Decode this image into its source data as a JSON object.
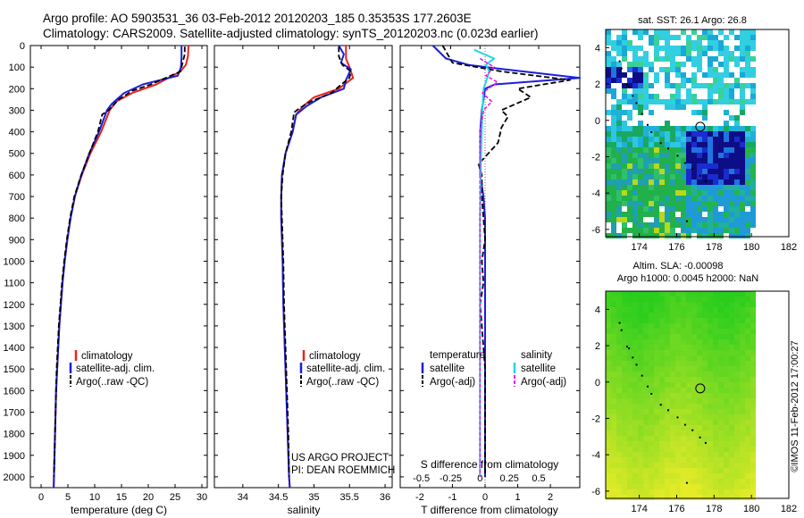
{
  "title": {
    "line1": "Argo profile: AO 5903531_36 03-Feb-2012 20120203_185 0.35353S 177.2603E",
    "line2": "Climatology: CARS2009. Satellite-adjusted climatology: synTS_20120203.nc (0.023d earlier)"
  },
  "depth_ticks": [
    "0",
    "100",
    "200",
    "300",
    "400",
    "500",
    "600",
    "700",
    "800",
    "900",
    "1000",
    "1100",
    "1200",
    "1300",
    "1400",
    "1500",
    "1600",
    "1700",
    "1800",
    "1900",
    "2000"
  ],
  "legend_profile": {
    "climatology": "climatology",
    "satellite": "satellite-adj. clim.",
    "argo": "Argo(..raw -QC)"
  },
  "legend_diff": {
    "temperature_header": "temperature",
    "salinity_header": "salinity",
    "t_satellite": "satellite",
    "t_argo": "Argo(-adj)",
    "s_satellite": "satellite",
    "s_argo": "Argo(-adj)"
  },
  "project": {
    "line1": "US ARGO PROJECT",
    "line2": "PI: DEAN ROEMMICH"
  },
  "sst_title": "sat. SST: 26.1  Argo: 26.8",
  "sla_title": {
    "line1": "Altim. SLA: -0.00098",
    "line2": "Argo h1000: 0.0045 h2000: NaN"
  },
  "timestamp": "©IMOS 11-Feb-2012 17:00:27",
  "colors": {
    "climatology": "#e8231f",
    "satellite": "#1b1fd6",
    "argo": "#000000",
    "s_satellite": "#21d6e0",
    "s_argo": "#e020e0"
  },
  "chart_data": [
    {
      "type": "line",
      "name": "temperature",
      "xlabel": "temperature (deg C)",
      "ylabel": "",
      "xlim": [
        -2,
        31
      ],
      "ylim": [
        2050,
        0
      ],
      "xticks": [
        "0",
        "5",
        "10",
        "15",
        "20",
        "25",
        "30"
      ],
      "series": [
        {
          "name": "climatology",
          "style": "solid",
          "points": [
            [
              27.5,
              0
            ],
            [
              27.4,
              50
            ],
            [
              27.0,
              90
            ],
            [
              26.0,
              120
            ],
            [
              21.5,
              180
            ],
            [
              17.0,
              220
            ],
            [
              14.0,
              260
            ],
            [
              12.8,
              300
            ],
            [
              11.2,
              400
            ],
            [
              9.2,
              500
            ],
            [
              7.6,
              600
            ],
            [
              6.3,
              700
            ],
            [
              5.5,
              800
            ],
            [
              4.9,
              900
            ],
            [
              4.4,
              1000
            ],
            [
              4.0,
              1100
            ],
            [
              3.7,
              1200
            ],
            [
              3.4,
              1300
            ],
            [
              3.2,
              1400
            ],
            [
              3.0,
              1500
            ],
            [
              2.8,
              1600
            ],
            [
              2.7,
              1700
            ],
            [
              2.6,
              1800
            ],
            [
              2.5,
              1900
            ],
            [
              2.4,
              2000
            ],
            [
              2.35,
              2050
            ]
          ]
        },
        {
          "name": "satellite-adj. clim.",
          "style": "solid",
          "points": [
            [
              26.2,
              0
            ],
            [
              26.2,
              50
            ],
            [
              26.1,
              100
            ],
            [
              25.5,
              140
            ],
            [
              19.0,
              180
            ],
            [
              15.5,
              220
            ],
            [
              13.2,
              270
            ],
            [
              12.3,
              300
            ],
            [
              10.8,
              400
            ],
            [
              9.0,
              500
            ],
            [
              7.5,
              600
            ],
            [
              6.3,
              700
            ],
            [
              5.5,
              800
            ],
            [
              4.9,
              900
            ],
            [
              4.4,
              1000
            ],
            [
              4.0,
              1100
            ],
            [
              3.7,
              1200
            ],
            [
              3.4,
              1300
            ],
            [
              3.2,
              1400
            ],
            [
              3.0,
              1500
            ],
            [
              2.8,
              1600
            ],
            [
              2.7,
              1700
            ],
            [
              2.6,
              1800
            ],
            [
              2.5,
              1900
            ],
            [
              2.4,
              2000
            ],
            [
              2.35,
              2050
            ]
          ]
        },
        {
          "name": "Argo(..raw -QC)",
          "style": "dash",
          "points": [
            [
              26.8,
              5
            ],
            [
              26.8,
              40
            ],
            [
              26.4,
              80
            ],
            [
              26.0,
              120
            ],
            [
              20.5,
              180
            ],
            [
              17.0,
              210
            ],
            [
              14.5,
              250
            ],
            [
              12.6,
              300
            ],
            [
              11.4,
              320
            ],
            [
              10.6,
              400
            ],
            [
              9.0,
              500
            ],
            [
              7.5,
              600
            ],
            [
              6.2,
              700
            ],
            [
              5.4,
              800
            ],
            [
              4.8,
              900
            ],
            [
              4.3,
              1000
            ],
            [
              3.9,
              1100
            ],
            [
              3.6,
              1200
            ],
            [
              3.3,
              1300
            ],
            [
              3.1,
              1400
            ],
            [
              2.9,
              1500
            ],
            [
              2.8,
              1600
            ],
            [
              2.7,
              1700
            ],
            [
              2.6,
              1800
            ],
            [
              2.5,
              1900
            ],
            [
              2.4,
              2000
            ]
          ]
        }
      ]
    },
    {
      "type": "line",
      "name": "salinity",
      "xlabel": "salinity",
      "ylabel": "",
      "xlim": [
        33.6,
        36.1
      ],
      "ylim": [
        2050,
        0
      ],
      "xticks": [
        "34",
        "34.5",
        "35",
        "35.5",
        "36"
      ],
      "series": [
        {
          "name": "climatology",
          "style": "solid",
          "points": [
            [
              35.45,
              0
            ],
            [
              35.45,
              60
            ],
            [
              35.5,
              100
            ],
            [
              35.55,
              150
            ],
            [
              35.35,
              200
            ],
            [
              35.0,
              240
            ],
            [
              34.85,
              280
            ],
            [
              34.75,
              320
            ],
            [
              34.7,
              400
            ],
            [
              34.6,
              500
            ],
            [
              34.55,
              600
            ],
            [
              34.54,
              700
            ],
            [
              34.54,
              800
            ],
            [
              34.55,
              900
            ],
            [
              34.56,
              1000
            ],
            [
              34.57,
              1200
            ],
            [
              34.59,
              1400
            ],
            [
              34.61,
              1600
            ],
            [
              34.63,
              1800
            ],
            [
              34.65,
              2000
            ],
            [
              34.66,
              2050
            ]
          ]
        },
        {
          "name": "satellite-adj. clim.",
          "style": "solid",
          "points": [
            [
              35.35,
              0
            ],
            [
              35.42,
              40
            ],
            [
              35.38,
              80
            ],
            [
              35.52,
              110
            ],
            [
              35.45,
              160
            ],
            [
              35.42,
              200
            ],
            [
              35.1,
              240
            ],
            [
              34.9,
              280
            ],
            [
              34.75,
              320
            ],
            [
              34.7,
              400
            ],
            [
              34.6,
              500
            ],
            [
              34.55,
              600
            ],
            [
              34.54,
              700
            ],
            [
              34.54,
              800
            ],
            [
              34.55,
              900
            ],
            [
              34.56,
              1000
            ],
            [
              34.57,
              1200
            ],
            [
              34.59,
              1400
            ],
            [
              34.61,
              1600
            ],
            [
              34.63,
              1800
            ],
            [
              34.65,
              2000
            ],
            [
              34.66,
              2050
            ]
          ]
        },
        {
          "name": "Argo(..raw -QC)",
          "style": "dash",
          "points": [
            [
              35.35,
              5
            ],
            [
              35.35,
              50
            ],
            [
              35.4,
              90
            ],
            [
              35.52,
              120
            ],
            [
              35.5,
              150
            ],
            [
              35.35,
              190
            ],
            [
              35.25,
              220
            ],
            [
              34.95,
              260
            ],
            [
              34.8,
              290
            ],
            [
              34.72,
              310
            ],
            [
              34.68,
              400
            ],
            [
              34.6,
              500
            ],
            [
              34.56,
              600
            ],
            [
              34.54,
              700
            ],
            [
              34.55,
              800
            ],
            [
              34.56,
              900
            ],
            [
              34.57,
              1000
            ],
            [
              34.58,
              1200
            ],
            [
              34.6,
              1400
            ],
            [
              34.62,
              1600
            ],
            [
              34.64,
              1800
            ],
            [
              34.65,
              2000
            ]
          ]
        }
      ]
    },
    {
      "type": "line",
      "name": "difference",
      "xlabel": "T difference from climatology",
      "xlabel_top": "S difference from climatology",
      "xlim": [
        -2.6,
        2.9
      ],
      "xlim_s": [
        -0.68,
        0.85
      ],
      "ylim": [
        2050,
        0
      ],
      "xticks": [
        "-2",
        "-1",
        "0",
        "1",
        "2"
      ],
      "xticks_s": [
        "-0.5",
        "-0.25",
        "0",
        "0.25",
        "0.5"
      ],
      "series": [
        {
          "name": "T satellite",
          "style": "solid",
          "points": [
            [
              -1.6,
              0
            ],
            [
              -1.2,
              60
            ],
            [
              -0.5,
              90
            ],
            [
              0.6,
              110
            ],
            [
              2.9,
              150
            ],
            [
              0.3,
              180
            ],
            [
              0.0,
              200
            ],
            [
              -0.1,
              300
            ],
            [
              -0.15,
              400
            ],
            [
              -0.15,
              500
            ],
            [
              -0.15,
              600
            ],
            [
              -0.05,
              700
            ],
            [
              0.0,
              800
            ],
            [
              0.0,
              1000
            ],
            [
              0.0,
              1500
            ],
            [
              0.0,
              2000
            ]
          ]
        },
        {
          "name": "T Argo(-adj)",
          "style": "dash",
          "points": [
            [
              -1.3,
              0
            ],
            [
              -1.0,
              80
            ],
            [
              0.5,
              120
            ],
            [
              2.6,
              160
            ],
            [
              1.0,
              200
            ],
            [
              1.4,
              240
            ],
            [
              0.5,
              300
            ],
            [
              0.7,
              330
            ],
            [
              0.5,
              380
            ],
            [
              0.4,
              450
            ],
            [
              -0.2,
              550
            ],
            [
              -0.1,
              600
            ],
            [
              -0.1,
              700
            ],
            [
              -0.05,
              800
            ],
            [
              0.0,
              900
            ],
            [
              -0.1,
              1000
            ],
            [
              -0.05,
              1100
            ],
            [
              -0.15,
              1200
            ],
            [
              -0.1,
              1300
            ],
            [
              -0.05,
              1400
            ],
            [
              0.0,
              1500
            ],
            [
              0.0,
              1700
            ],
            [
              0.0,
              2000
            ]
          ]
        },
        {
          "name": "S satellite",
          "style": "solid",
          "points": [
            [
              -0.05,
              20
            ],
            [
              0.12,
              60
            ],
            [
              0.05,
              90
            ],
            [
              0.08,
              120
            ],
            [
              0.03,
              200
            ],
            [
              0.02,
              300
            ],
            [
              0.01,
              500
            ],
            [
              0.0,
              800
            ],
            [
              0.0,
              1200
            ],
            [
              0.0,
              2000
            ]
          ]
        },
        {
          "name": "S Argo(-adj)",
          "style": "dash",
          "points": [
            [
              0.0,
              60
            ],
            [
              0.12,
              100
            ],
            [
              0.05,
              140
            ],
            [
              0.15,
              170
            ],
            [
              0.02,
              220
            ],
            [
              0.1,
              260
            ],
            [
              0.03,
              300
            ],
            [
              0.0,
              400
            ],
            [
              0.0,
              600
            ],
            [
              0.0,
              900
            ],
            [
              0.0,
              1200
            ],
            [
              0.0,
              2000
            ]
          ]
        }
      ]
    },
    {
      "type": "heatmap",
      "name": "satellite SST map",
      "title": "sat. SST: 26.1  Argo: 26.8",
      "xlim": [
        172.2,
        182
      ],
      "ylim": [
        -6.4,
        5
      ],
      "xticks": [
        "174",
        "176",
        "178",
        "180",
        "182"
      ],
      "yticks": [
        "4",
        "2",
        "0",
        "-2",
        "-4",
        "-6"
      ],
      "marker": [
        177.26,
        -0.35
      ]
    },
    {
      "type": "heatmap",
      "name": "altimeter SLA map",
      "title": "Altim. SLA: -0.00098",
      "xlim": [
        172.2,
        182
      ],
      "ylim": [
        -6.4,
        5
      ],
      "xticks": [
        "174",
        "176",
        "178",
        "180",
        "182"
      ],
      "yticks": [
        "4",
        "2",
        "0",
        "-2",
        "-4",
        "-6"
      ],
      "marker": [
        177.26,
        -0.35
      ]
    }
  ]
}
